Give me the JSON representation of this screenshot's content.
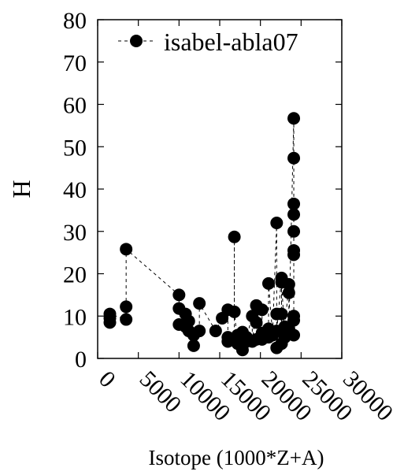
{
  "chart_data": {
    "type": "scatter",
    "xlabel": "Isotope (1000*Z+A)",
    "ylabel": "H",
    "xlim": [
      0,
      30000
    ],
    "ylim": [
      0,
      80
    ],
    "xticks": [
      "0",
      "5000",
      "10000",
      "15000",
      "20000",
      "25000",
      "30000"
    ],
    "xtick_values": [
      0,
      5000,
      10000,
      15000,
      20000,
      25000,
      30000
    ],
    "yticks": [
      "0",
      "10",
      "20",
      "30",
      "40",
      "50",
      "60",
      "70",
      "80"
    ],
    "ytick_values": [
      0,
      10,
      20,
      30,
      40,
      50,
      60,
      70,
      80
    ],
    "grid": false,
    "legend_position": "top-right",
    "series": [
      {
        "name": "isabel-abla07",
        "marker": "filled-circle",
        "line": "dashed",
        "color": "#000000",
        "points": [
          [
            1500,
            8.5
          ],
          [
            1500,
            9.5
          ],
          [
            1500,
            10.5
          ],
          [
            3500,
            9.2
          ],
          [
            3500,
            12.2
          ],
          [
            3500,
            25.8
          ],
          [
            10000,
            15.0
          ],
          [
            10000,
            11.8
          ],
          [
            10000,
            8.0
          ],
          [
            10800,
            10.5
          ],
          [
            10800,
            7.5
          ],
          [
            11200,
            6.5
          ],
          [
            11200,
            8.8
          ],
          [
            11800,
            5.5
          ],
          [
            11800,
            3.0
          ],
          [
            12500,
            6.5
          ],
          [
            12500,
            13.0
          ],
          [
            14500,
            6.5
          ],
          [
            15300,
            9.5
          ],
          [
            16000,
            11.5
          ],
          [
            16000,
            4.0
          ],
          [
            16000,
            5.0
          ],
          [
            16800,
            4.5
          ],
          [
            16800,
            28.7
          ],
          [
            16800,
            11.0
          ],
          [
            17200,
            3.5
          ],
          [
            17200,
            5.5
          ],
          [
            17800,
            6.2
          ],
          [
            17800,
            4.5
          ],
          [
            17800,
            2.0
          ],
          [
            18300,
            4.0
          ],
          [
            18300,
            5.0
          ],
          [
            19000,
            10.0
          ],
          [
            19000,
            4.0
          ],
          [
            19500,
            12.5
          ],
          [
            19500,
            8.5
          ],
          [
            19500,
            4.5
          ],
          [
            20200,
            11.5
          ],
          [
            20200,
            6.0
          ],
          [
            20200,
            4.5
          ],
          [
            21000,
            5.0
          ],
          [
            21000,
            7.0
          ],
          [
            21000,
            17.7
          ],
          [
            21500,
            5.5
          ],
          [
            21500,
            6.0
          ],
          [
            22000,
            32.0
          ],
          [
            22000,
            10.5
          ],
          [
            22000,
            2.5
          ],
          [
            22000,
            6.5
          ],
          [
            22600,
            19.0
          ],
          [
            22600,
            10.5
          ],
          [
            22600,
            3.5
          ],
          [
            22600,
            18.0
          ],
          [
            23000,
            5.0
          ],
          [
            23000,
            7.5
          ],
          [
            23500,
            17.5
          ],
          [
            23500,
            15.5
          ],
          [
            23500,
            7.0
          ],
          [
            24100,
            56.7
          ],
          [
            24100,
            47.3
          ],
          [
            24100,
            36.5
          ],
          [
            24100,
            34.0
          ],
          [
            24100,
            30.0
          ],
          [
            24100,
            25.5
          ],
          [
            24100,
            24.5
          ],
          [
            24100,
            10.0
          ],
          [
            24100,
            9.0
          ],
          [
            24100,
            5.5
          ]
        ]
      }
    ]
  }
}
